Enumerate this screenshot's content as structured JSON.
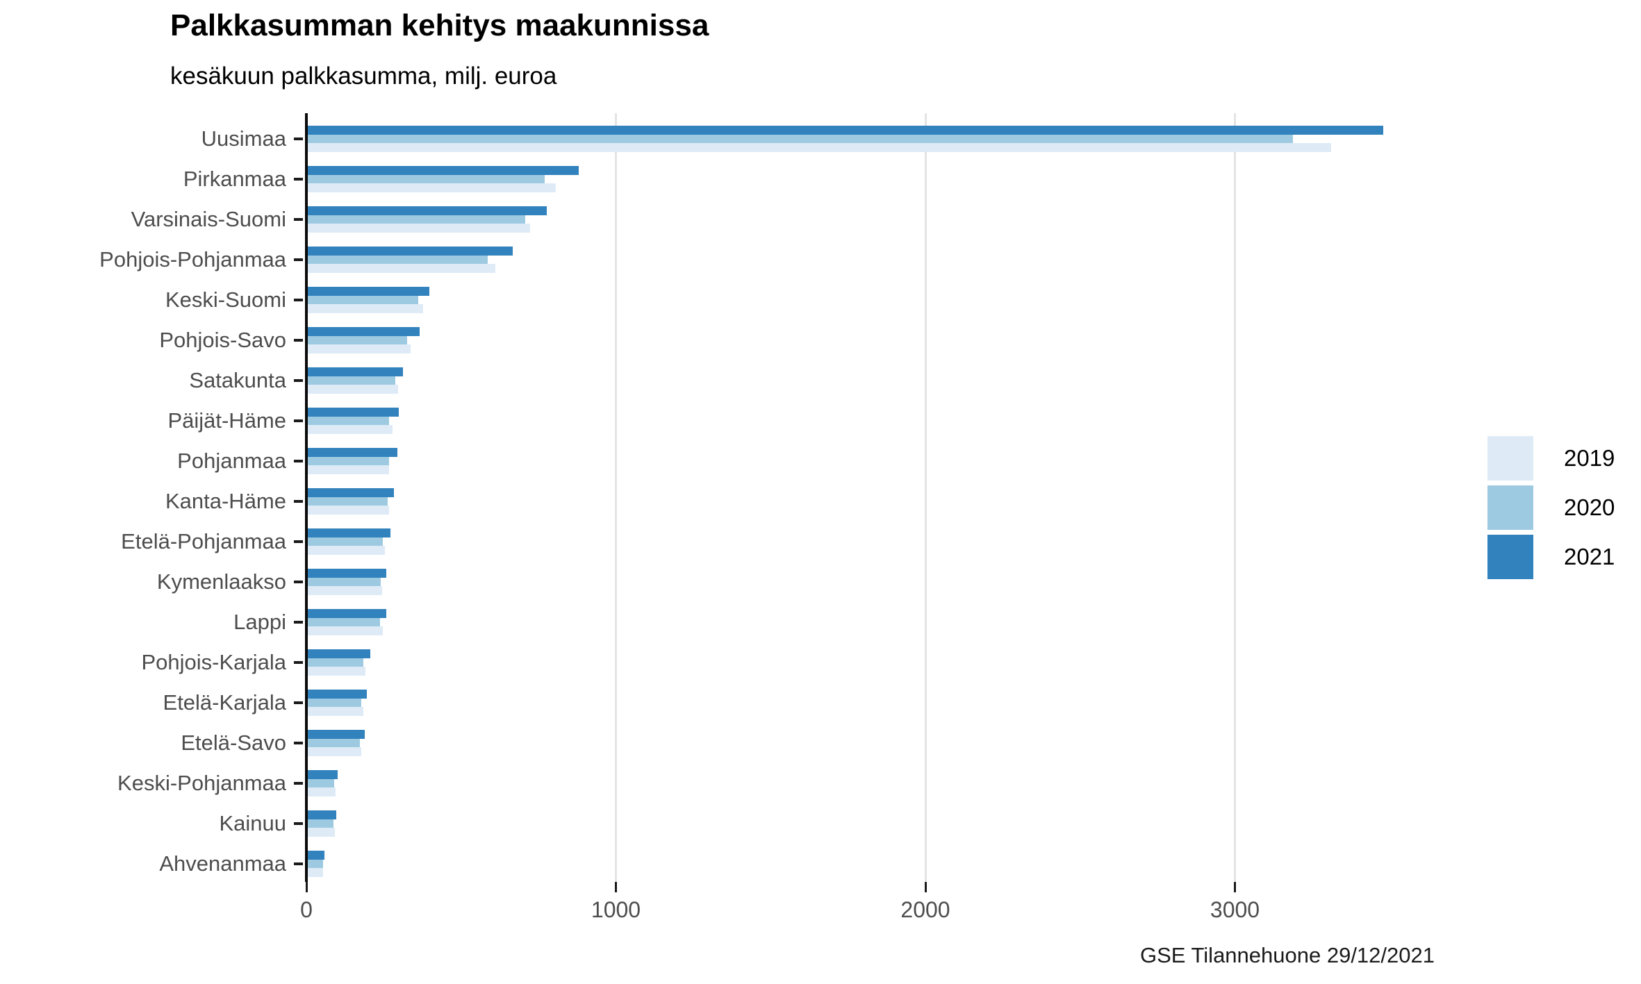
{
  "header": {
    "title": "Palkkasumman kehitys maakunnissa",
    "subtitle": "kesäkuun palkkasumma, milj. euroa"
  },
  "footer": {
    "caption": "GSE Tilannehuone 29/12/2021"
  },
  "legend": {
    "position": "right",
    "items": [
      {
        "label": "2019",
        "color": "#deebf7"
      },
      {
        "label": "2020",
        "color": "#9ecae1"
      },
      {
        "label": "2021",
        "color": "#3182bd"
      }
    ]
  },
  "colors": {
    "bar_2019": "#deebf7",
    "bar_2020": "#9ecae1",
    "bar_2021": "#3182bd",
    "gridline": "#e4e4e4",
    "axis_text": "#4d4d4d",
    "axis_line": "#0a0a0a"
  },
  "chart_data": {
    "type": "bar",
    "orientation": "horizontal",
    "title": "Palkkasumman kehitys maakunnissa",
    "subtitle": "kesäkuun palkkasumma, milj. euroa",
    "xlabel": "",
    "ylabel": "",
    "grid": "vertical-only",
    "legend_position": "right",
    "bar_order_top_to_bottom": [
      "2021",
      "2020",
      "2019"
    ],
    "x_ticks": [
      0,
      1000,
      2000,
      3000
    ],
    "x_tick_labels": [
      "0",
      "1000",
      "2000",
      "3000"
    ],
    "xlim": [
      0,
      3723
    ],
    "categories": [
      "Uusimaa",
      "Pirkanmaa",
      "Varsinais-Suomi",
      "Pohjois-Pohjanmaa",
      "Keski-Suomi",
      "Pohjois-Savo",
      "Satakunta",
      "Päijät-Häme",
      "Pohjanmaa",
      "Kanta-Häme",
      "Etelä-Pohjanmaa",
      "Kymenlaakso",
      "Lappi",
      "Pohjois-Karjala",
      "Etelä-Karjala",
      "Etelä-Savo",
      "Keski-Pohjanmaa",
      "Kainuu",
      "Ahvenanmaa"
    ],
    "series": [
      {
        "name": "2019",
        "color": "#deebf7",
        "values": [
          3311,
          806,
          723,
          611,
          377,
          336,
          297,
          278,
          267,
          266,
          253,
          244,
          246,
          191,
          185,
          177,
          94,
          91,
          54
        ]
      },
      {
        "name": "2020",
        "color": "#9ecae1",
        "values": [
          3187,
          769,
          706,
          586,
          361,
          325,
          288,
          268,
          266,
          263,
          248,
          240,
          237,
          183,
          177,
          172,
          89,
          88,
          53
        ]
      },
      {
        "name": "2021",
        "color": "#3182bd",
        "values": [
          3479,
          879,
          777,
          667,
          397,
          366,
          311,
          299,
          294,
          283,
          272,
          259,
          258,
          207,
          195,
          189,
          101,
          97,
          58
        ]
      }
    ]
  }
}
